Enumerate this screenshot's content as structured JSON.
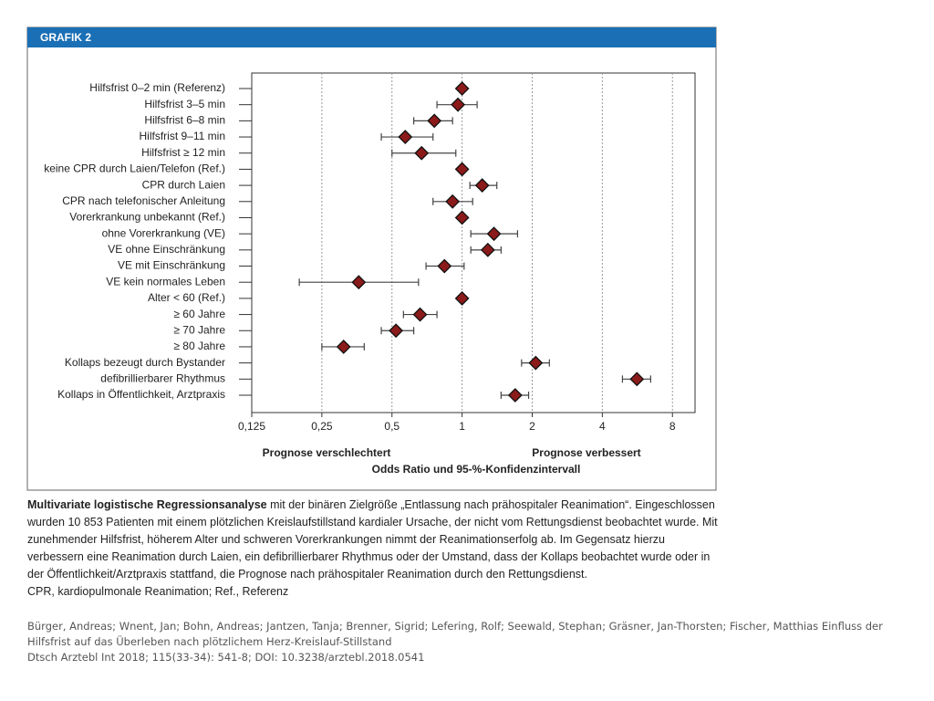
{
  "figure_label": "GRAFIK 2",
  "chart_data": {
    "type": "forest",
    "categories": [
      "Hilfsfrist 0–2 min (Referenz)",
      "Hilfsfrist 3–5 min",
      "Hilfsfrist 6–8 min",
      "Hilfsfrist 9–11 min",
      "Hilfsfrist ≥ 12 min",
      "keine CPR durch Laien/Telefon (Ref.)",
      "CPR durch Laien",
      "CPR nach telefonischer Anleitung",
      "Vorerkrankung unbekannt (Ref.)",
      "ohne Vorerkrankung (VE)",
      "VE ohne Einschränkung",
      "VE mit Einschränkung",
      "VE kein normales Leben",
      "Alter < 60 (Ref.)",
      "≥ 60 Jahre",
      "≥ 70 Jahre",
      "≥ 80 Jahre",
      "Kollaps bezeugt durch Bystander",
      "defibrillierbarer Rhythmus",
      "Kollaps in Öffentlichkeit, Arztpraxis"
    ],
    "values": [
      1,
      0.96,
      0.76,
      0.57,
      0.67,
      1,
      1.22,
      0.91,
      1,
      1.37,
      1.29,
      0.84,
      0.36,
      1,
      0.66,
      0.52,
      0.31,
      2.07,
      5.63,
      1.69
    ],
    "lower": [
      null,
      0.78,
      0.62,
      0.45,
      0.5,
      null,
      1.08,
      0.75,
      null,
      1.09,
      1.09,
      0.7,
      0.2,
      null,
      0.56,
      0.45,
      0.25,
      1.8,
      4.88,
      1.47
    ],
    "upper": [
      null,
      1.16,
      0.91,
      0.75,
      0.94,
      null,
      1.41,
      1.11,
      null,
      1.73,
      1.47,
      1.02,
      0.65,
      null,
      0.78,
      0.62,
      0.38,
      2.37,
      6.45,
      1.93
    ],
    "color": "#8b1a1a",
    "xlim": [
      0.125,
      10
    ],
    "xscale": "log",
    "xticks": [
      {
        "value": 0.125,
        "label": "0,125"
      },
      {
        "value": 0.25,
        "label": "0,25"
      },
      {
        "value": 0.5,
        "label": "0,5"
      },
      1,
      2,
      4,
      8
    ],
    "grid": true,
    "left_note": "Prognose verschlechtert",
    "right_note": "Prognose verbessert",
    "xlabel": "Odds Ratio und 95-%-Konfidenzintervall"
  },
  "caption": {
    "bold": "Multivariate logistische Regressionsanalyse",
    "text": " mit der binären Zielgröße „Entlassung nach prähospitaler Reanimation“. Eingeschlossen wurden 10 853 Patienten mit einem plötzlichen Kreislaufstillstand kardialer Ursache, der nicht vom Rettungsdienst beobachtet wurde. Mit zunehmender Hilfsfrist, höherem Alter und schweren Vorerkrankungen nimmt der Reanimationserfolg ab. Im Gegensatz hierzu verbessern eine Reanimation durch Laien, ein defibrillierbarer Rhythmus oder der Umstand, dass der Kollaps beobachtet wurde oder in der Öffentlichkeit/Arztpraxis stattfand, die Prognose nach prähospitaler Reanimation durch den Rettungsdienst.",
    "abbrev": "CPR, kardiopulmonale Reanimation; Ref., Referenz"
  },
  "source": [
    "Bürger, Andreas; Wnent, Jan; Bohn, Andreas; Jantzen, Tanja; Brenner, Sigrid; Lefering, Rolf; Seewald, Stephan; Gräsner, Jan-Thorsten; Fischer, Matthias Einfluss der Hilfsfrist auf das Überleben nach plötzlichem Herz-Kreislauf-Stillstand",
    "Dtsch Arztebl Int 2018; 115(33-34): 541-8; DOI: 10.3238/arztebl.2018.0541"
  ]
}
